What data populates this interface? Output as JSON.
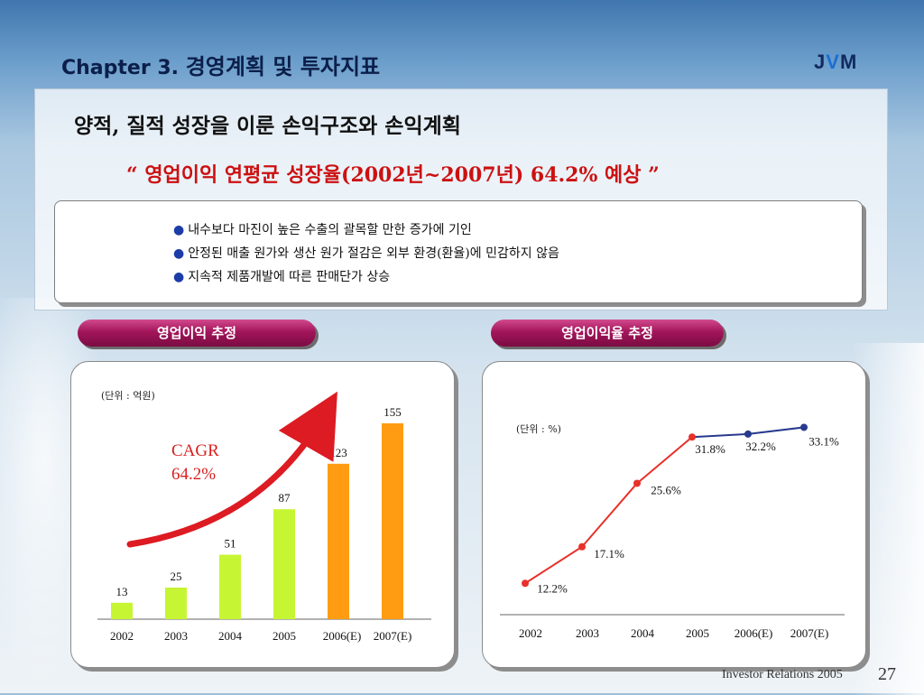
{
  "header": {
    "title_en": "Chapter 3.",
    "title_ko": "경영계획  및  투자지표",
    "logo": "JVM"
  },
  "subtitle": "양적, 질적 성장을 이룬 손익구조와 손익계획",
  "highlight": "“ 영업이익 연평균 성장율(2002년~2007년) 64.2% 예상 ”",
  "bullets": [
    "내수보다 마진이 높은 수출의 괄목할 만한 증가에 기인",
    "안정된 매출 원가와 생산 원가 절감은 외부 환경(환율)에 민감하지 않음",
    "지속적 제품개발에 따른 판매단가 상승"
  ],
  "pills": {
    "left": "영업이익 추정",
    "right": "영업이익율 추정"
  },
  "footer": {
    "text": "Investor Relations 2005",
    "page": "27"
  },
  "colors": {
    "bar_actual": "#c6f533",
    "bar_estimate": "#ff9c12",
    "line_actual": "#e8312a",
    "line_estimate": "#283a8e",
    "arrow": "#dd1b22"
  },
  "chart_data": [
    {
      "type": "bar",
      "unit_label": "(단위 : 억원)",
      "categories": [
        "2002",
        "2003",
        "2004",
        "2005",
        "2006(E)",
        "2007(E)"
      ],
      "values": [
        13,
        25,
        51,
        87,
        123,
        155
      ],
      "value_labels": [
        "13",
        "25",
        "51",
        "87",
        "123",
        "155"
      ],
      "estimate_from_index": 4,
      "annotation": [
        "CAGR",
        "64.2%"
      ],
      "ylim": [
        0,
        155
      ],
      "grid": false,
      "legend": "none"
    },
    {
      "type": "line",
      "unit_label": "(단위 : %)",
      "categories": [
        "2002",
        "2003",
        "2004",
        "2005",
        "2006(E)",
        "2007(E)"
      ],
      "values": [
        12.2,
        17.1,
        25.6,
        31.8,
        32.2,
        33.1
      ],
      "value_labels": [
        "12.2%",
        "17.1%",
        "25.6%",
        "31.8%",
        "32.2%",
        "33.1%"
      ],
      "estimate_from_index": 4,
      "ylim": [
        8,
        34
      ],
      "grid": false,
      "legend": "none"
    }
  ]
}
